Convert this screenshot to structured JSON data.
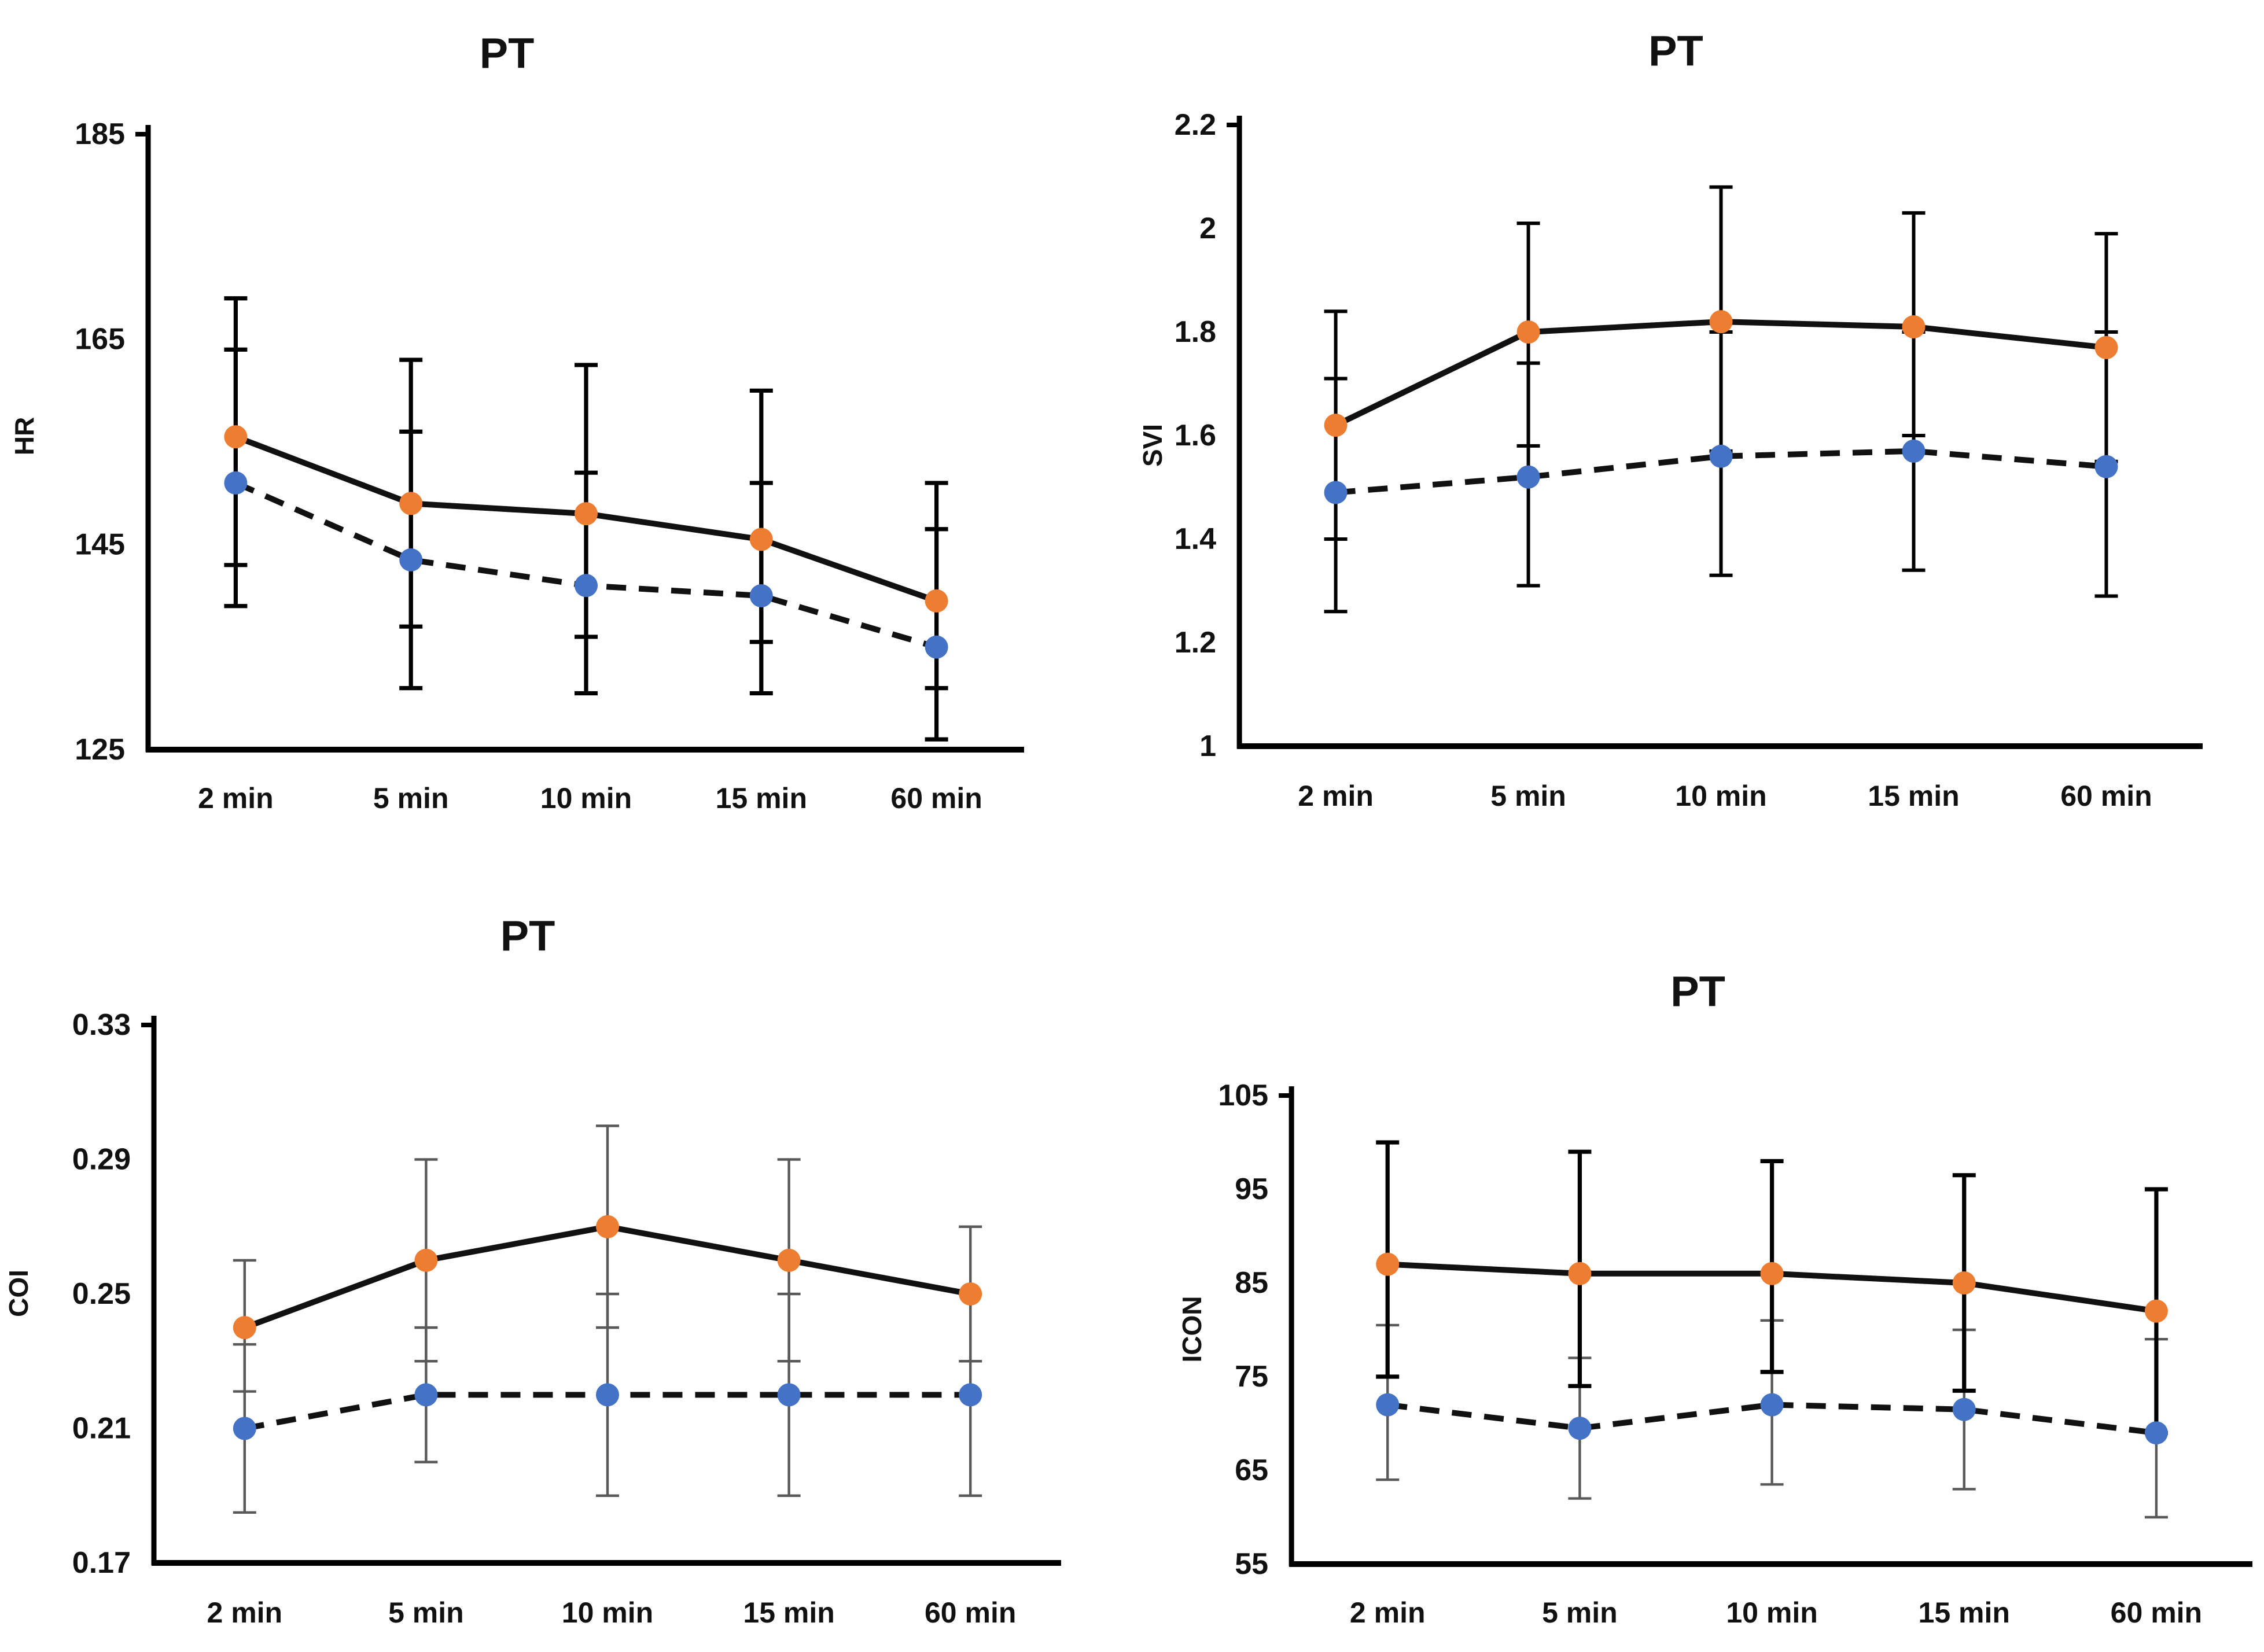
{
  "page": {
    "background": "#ffffff",
    "description": "Four line charts in a 2x2 grid comparing two series (orange solid, blue dashed) with error bars over time"
  },
  "colors": {
    "series_orange": "#ED7D31",
    "series_blue": "#4472C4",
    "data_line": "#111111",
    "err_black": "#000000",
    "err_gray": "#595959",
    "axis": "#000000",
    "text": "#111111"
  },
  "chart_data": [
    {
      "type": "line",
      "title": "PT",
      "ylabel": "HR",
      "xlabel": "",
      "categories": [
        "2 min",
        "5 min",
        "10 min",
        "15 min",
        "60 min"
      ],
      "ylim": [
        125,
        185
      ],
      "ytick_values": [
        185,
        165,
        145,
        125
      ],
      "ytick_labels": [
        "185",
        "165",
        "145",
        "125"
      ],
      "grid": false,
      "legend": "none",
      "series": [
        {
          "name": "orange-solid",
          "line_style": "solid",
          "marker_color": "#ED7D31",
          "line_color": "#111111",
          "err_color": "#000000",
          "err_width": 3.6,
          "values": [
            155.5,
            149,
            148,
            145.5,
            139.5
          ],
          "err_lo": [
            143,
            137,
            136,
            135.5,
            131
          ],
          "err_hi": [
            169,
            163,
            162.5,
            160,
            151
          ]
        },
        {
          "name": "blue-dashed",
          "line_style": "dashed",
          "marker_color": "#4472C4",
          "line_color": "#111111",
          "err_color": "#000000",
          "err_width": 3.6,
          "values": [
            151,
            143.5,
            141,
            140,
            135
          ],
          "err_lo": [
            139,
            131,
            130.5,
            130.5,
            126
          ],
          "err_hi": [
            164,
            156,
            152,
            151,
            146.5
          ]
        }
      ]
    },
    {
      "type": "line",
      "title": "PT",
      "ylabel": "SVI",
      "xlabel": "",
      "categories": [
        "2 min",
        "5 min",
        "10 min",
        "15 min",
        "60 min"
      ],
      "ylim": [
        1,
        2.2
      ],
      "ytick_values": [
        2.2,
        2,
        1.8,
        1.6,
        1.4,
        1.2,
        1
      ],
      "ytick_labels": [
        "2.2",
        "2",
        "1.8",
        "1.6",
        "1.4",
        "1.2",
        "1"
      ],
      "grid": false,
      "legend": "none",
      "series": [
        {
          "name": "orange-solid",
          "line_style": "solid",
          "marker_color": "#ED7D31",
          "line_color": "#111111",
          "err_color": "#000000",
          "err_width": 3,
          "values": [
            1.62,
            1.8,
            1.82,
            1.81,
            1.77
          ],
          "err_lo": [
            1.4,
            1.58,
            1.57,
            1.6,
            1.55
          ],
          "err_hi": [
            1.84,
            2.01,
            2.08,
            2.03,
            1.99
          ]
        },
        {
          "name": "blue-dashed",
          "line_style": "dashed",
          "marker_color": "#4472C4",
          "line_color": "#111111",
          "err_color": "#000000",
          "err_width": 3,
          "values": [
            1.49,
            1.52,
            1.56,
            1.57,
            1.54
          ],
          "err_lo": [
            1.26,
            1.31,
            1.33,
            1.34,
            1.29
          ],
          "err_hi": [
            1.71,
            1.74,
            1.8,
            1.8,
            1.8
          ]
        }
      ]
    },
    {
      "type": "line",
      "title": "PT",
      "ylabel": "COI",
      "xlabel": "",
      "categories": [
        "2 min",
        "5 min",
        "10 min",
        "15 min",
        "60 min"
      ],
      "ylim": [
        0.17,
        0.33
      ],
      "ytick_values": [
        0.33,
        0.29,
        0.25,
        0.21,
        0.17
      ],
      "ytick_labels": [
        "0.33",
        "0.29",
        "0.25",
        "0.21",
        "0.17"
      ],
      "grid": false,
      "legend": "none",
      "series": [
        {
          "name": "orange-solid",
          "line_style": "solid",
          "marker_color": "#ED7D31",
          "line_color": "#111111",
          "err_color": "#595959",
          "err_width": 2.2,
          "values": [
            0.24,
            0.26,
            0.27,
            0.26,
            0.25
          ],
          "err_lo": [
            0.221,
            0.23,
            0.24,
            0.23,
            0.23
          ],
          "err_hi": [
            0.26,
            0.29,
            0.3,
            0.29,
            0.27
          ]
        },
        {
          "name": "blue-dashed",
          "line_style": "dashed",
          "marker_color": "#4472C4",
          "line_color": "#111111",
          "err_color": "#595959",
          "err_width": 2.2,
          "values": [
            0.21,
            0.22,
            0.22,
            0.22,
            0.22
          ],
          "err_lo": [
            0.185,
            0.2,
            0.19,
            0.19,
            0.19
          ],
          "err_hi": [
            0.235,
            0.24,
            0.25,
            0.25,
            0.25
          ]
        }
      ]
    },
    {
      "type": "line",
      "title": "PT",
      "ylabel": "ICON",
      "xlabel": "",
      "categories": [
        "2 min",
        "5 min",
        "10 min",
        "15 min",
        "60 min"
      ],
      "ylim": [
        55,
        105
      ],
      "ytick_values": [
        105,
        95,
        85,
        75,
        65,
        55
      ],
      "ytick_labels": [
        "105",
        "95",
        "85",
        "75",
        "65",
        "55"
      ],
      "grid": false,
      "legend": "none",
      "series": [
        {
          "name": "orange-solid",
          "line_style": "solid",
          "marker_color": "#ED7D31",
          "line_color": "#111111",
          "err_color": "#000000",
          "err_width": 3.6,
          "values": [
            87,
            86,
            86,
            85,
            82
          ],
          "err_lo": [
            75,
            74,
            75.5,
            73.5,
            69
          ],
          "err_hi": [
            100,
            99,
            98,
            96.5,
            95
          ]
        },
        {
          "name": "blue-dashed",
          "line_style": "dashed",
          "marker_color": "#4472C4",
          "line_color": "#111111",
          "err_color": "#595959",
          "err_width": 2.2,
          "values": [
            72,
            69.5,
            72,
            71.5,
            69
          ],
          "err_lo": [
            64,
            62,
            63.5,
            63,
            60
          ],
          "err_hi": [
            80.5,
            77,
            81,
            80,
            79
          ]
        }
      ]
    }
  ]
}
